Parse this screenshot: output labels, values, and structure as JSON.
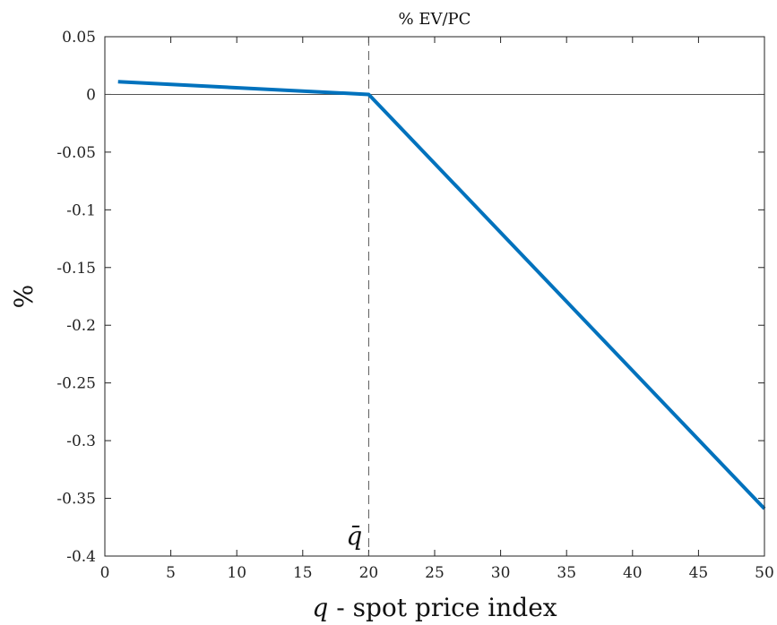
{
  "chart_data": {
    "type": "line",
    "title": "% EV/PC",
    "xlabel_var": "q",
    "xlabel_rest": " - spot price index",
    "ylabel": "%",
    "xlim": [
      0,
      50
    ],
    "ylim": [
      -0.4,
      0.05
    ],
    "xticks": [
      0,
      5,
      10,
      15,
      20,
      25,
      30,
      35,
      40,
      45,
      50
    ],
    "yticks": [
      0.05,
      0,
      -0.05,
      -0.1,
      -0.15,
      -0.2,
      -0.25,
      -0.3,
      -0.35,
      -0.4
    ],
    "xtick_labels": [
      "0",
      "5",
      "10",
      "15",
      "20",
      "25",
      "30",
      "35",
      "40",
      "45",
      "50"
    ],
    "ytick_labels": [
      "0.05",
      "0",
      "-0.05",
      "-0.1",
      "-0.15",
      "-0.2",
      "-0.25",
      "-0.3",
      "-0.35",
      "-0.4"
    ],
    "grid": false,
    "zero_line": 0,
    "vertical_ref": {
      "x": 20,
      "label": "q̄",
      "style": "dashed"
    },
    "series": [
      {
        "color": "#0072BD",
        "x": [
          1,
          20,
          50
        ],
        "y": [
          0.011,
          0.0,
          -0.359
        ]
      }
    ]
  }
}
